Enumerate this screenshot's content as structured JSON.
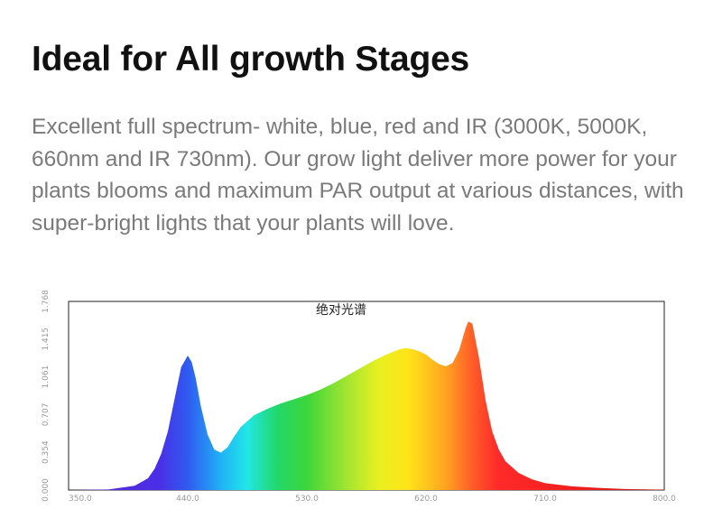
{
  "heading": "Ideal for All growth Stages",
  "description": "Excellent full spectrum- white, blue, red and IR (3000K, 5000K, 660nm and IR 730nm). Our grow light deliver more power for your plants blooms and maximum PAR output at various distances, with super-bright lights that your plants will love.",
  "chart_data": {
    "type": "area",
    "title": "绝对光谱",
    "xlabel": "",
    "ylabel": "",
    "xlim": [
      350,
      800
    ],
    "ylim": [
      0,
      1.768
    ],
    "x_ticks": [
      "350.0",
      "440.0",
      "530.0",
      "620.0",
      "710.0",
      "800.0"
    ],
    "y_ticks": [
      "0.000",
      "0.354",
      "0.707",
      "1.061",
      "1.415",
      "1.768"
    ],
    "grid": false,
    "legend": "none",
    "fill": "rainbow spectrum gradient (violet to deep red)",
    "series": [
      {
        "x": [
          350,
          380,
          400,
          410,
          415,
          420,
          425,
          430,
          435,
          440,
          443,
          446,
          450,
          455,
          460,
          465,
          470,
          475,
          480,
          490,
          500,
          510,
          520,
          530,
          540,
          550,
          560,
          570,
          580,
          590,
          600,
          605,
          610,
          615,
          620,
          625,
          630,
          635,
          640,
          645,
          650,
          652,
          655,
          660,
          665,
          670,
          675,
          680,
          690,
          700,
          710,
          730,
          750,
          770,
          800
        ],
        "y": [
          0.0,
          0.005,
          0.04,
          0.11,
          0.2,
          0.34,
          0.55,
          0.85,
          1.15,
          1.26,
          1.2,
          1.05,
          0.78,
          0.52,
          0.38,
          0.35,
          0.4,
          0.5,
          0.59,
          0.7,
          0.76,
          0.81,
          0.85,
          0.89,
          0.94,
          1.0,
          1.07,
          1.14,
          1.21,
          1.27,
          1.32,
          1.33,
          1.32,
          1.3,
          1.27,
          1.22,
          1.18,
          1.16,
          1.19,
          1.31,
          1.52,
          1.58,
          1.56,
          1.24,
          0.84,
          0.55,
          0.38,
          0.27,
          0.16,
          0.1,
          0.065,
          0.035,
          0.02,
          0.01,
          0.003
        ]
      }
    ],
    "colors": {
      "axis": "#222222",
      "tick_text": "#9a9a9a"
    }
  }
}
